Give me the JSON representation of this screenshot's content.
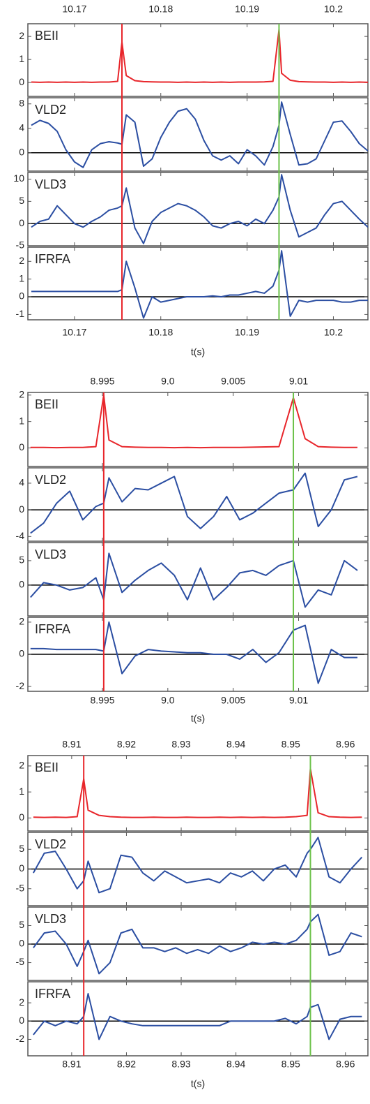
{
  "chart_data": [
    {
      "type": "line",
      "xlabel": "t(s)",
      "xlim": [
        10.1646,
        10.204
      ],
      "xticks": [
        10.17,
        10.18,
        10.19,
        10.2
      ],
      "markers": [
        {
          "x": 10.1755,
          "color": "#e8262b"
        },
        {
          "x": 10.1937,
          "color": "#6cc24a"
        }
      ],
      "x": [
        10.165,
        10.166,
        10.167,
        10.168,
        10.169,
        10.17,
        10.171,
        10.172,
        10.173,
        10.174,
        10.175,
        10.1755,
        10.176,
        10.177,
        10.178,
        10.179,
        10.18,
        10.181,
        10.182,
        10.183,
        10.184,
        10.185,
        10.186,
        10.187,
        10.188,
        10.189,
        10.19,
        10.191,
        10.192,
        10.193,
        10.1937,
        10.194,
        10.195,
        10.196,
        10.197,
        10.198,
        10.199,
        10.2,
        10.201,
        10.202,
        10.203,
        10.204
      ],
      "panels": [
        {
          "name": "BEII",
          "color": "#e8262b",
          "ylim": [
            -0.6,
            2.55
          ],
          "yticks": [
            0,
            1,
            2
          ],
          "zero_line": false,
          "values": [
            0.02,
            0.01,
            0.02,
            0.01,
            0.02,
            0.01,
            0.02,
            0.01,
            0.02,
            0.02,
            0.05,
            1.75,
            0.3,
            0.08,
            0.04,
            0.03,
            0.02,
            0.02,
            0.01,
            0.02,
            0.01,
            0.02,
            0.01,
            0.02,
            0.01,
            0.02,
            0.02,
            0.02,
            0.03,
            0.05,
            2.3,
            0.4,
            0.1,
            0.04,
            0.03,
            0.02,
            0.02,
            0.01,
            0.02,
            0.01,
            0.02,
            0.01
          ]
        },
        {
          "name": "VLD2",
          "color": "#2b4ea2",
          "ylim": [
            -3,
            9
          ],
          "yticks": [
            0,
            4,
            8
          ],
          "zero_line": true,
          "values": [
            4.5,
            5.3,
            4.8,
            3.5,
            0.5,
            -1.5,
            -2.4,
            0.5,
            1.5,
            1.8,
            1.6,
            1.4,
            6.2,
            5.0,
            -2.2,
            -1.0,
            2.5,
            5.0,
            6.8,
            7.2,
            5.5,
            2.0,
            -0.5,
            -1.2,
            -0.5,
            -1.8,
            0.5,
            -0.5,
            -2.0,
            1.0,
            4.5,
            8.3,
            3.0,
            -2.0,
            -1.8,
            -1.0,
            2.0,
            5.0,
            5.2,
            3.5,
            1.5,
            0.3
          ]
        },
        {
          "name": "VLD3",
          "color": "#2b4ea2",
          "ylim": [
            -5,
            11.5
          ],
          "yticks": [
            -5,
            0,
            5,
            10
          ],
          "zero_line": true,
          "values": [
            -0.8,
            0.5,
            1.0,
            4.0,
            2.0,
            0.0,
            -0.8,
            0.5,
            1.5,
            3.0,
            3.5,
            4.0,
            8.0,
            -1.0,
            -4.5,
            0.5,
            2.5,
            3.5,
            4.5,
            4.0,
            3.0,
            1.5,
            -0.5,
            -1.0,
            0.0,
            0.5,
            -0.5,
            1.0,
            0.0,
            3.0,
            6.0,
            11.0,
            3.0,
            -3.0,
            -2.0,
            -1.0,
            2.0,
            4.5,
            5.0,
            3.0,
            1.0,
            -0.8
          ]
        },
        {
          "name": "IFRFA",
          "color": "#2b4ea2",
          "ylim": [
            -1.3,
            2.8
          ],
          "yticks": [
            -1,
            0,
            1,
            2
          ],
          "zero_line": true,
          "values": [
            0.3,
            0.3,
            0.3,
            0.3,
            0.3,
            0.3,
            0.3,
            0.3,
            0.3,
            0.3,
            0.3,
            0.4,
            2.0,
            0.5,
            -1.2,
            0.0,
            -0.3,
            -0.2,
            -0.1,
            0.0,
            0.0,
            0.0,
            0.05,
            0.0,
            0.1,
            0.1,
            0.2,
            0.3,
            0.2,
            0.6,
            1.5,
            2.6,
            -1.1,
            -0.2,
            -0.3,
            -0.2,
            -0.2,
            -0.2,
            -0.3,
            -0.3,
            -0.2,
            -0.2
          ]
        }
      ]
    },
    {
      "type": "line",
      "xlabel": "t(s)",
      "xlim": [
        8.9893,
        9.0153
      ],
      "xticks": [
        8.995,
        {
          "value": 9,
          "label": "9.0"
        },
        9.005,
        9.01
      ],
      "markers": [
        {
          "x": 8.9951,
          "color": "#e8262b"
        },
        {
          "x": 9.0096,
          "color": "#6cc24a"
        }
      ],
      "x": [
        8.9895,
        8.9905,
        8.9915,
        8.9925,
        8.9935,
        8.9945,
        8.9951,
        8.9955,
        8.9965,
        8.9975,
        8.9985,
        8.9995,
        9.0005,
        9.0015,
        9.0025,
        9.0035,
        9.0045,
        9.0055,
        9.0065,
        9.0075,
        9.0085,
        9.0096,
        9.0105,
        9.0115,
        9.0125,
        9.0135,
        9.0145
      ],
      "panels": [
        {
          "name": "BEII",
          "color": "#e8262b",
          "ylim": [
            -0.7,
            2.1
          ],
          "yticks": [
            0,
            1,
            2
          ],
          "zero_line": false,
          "values": [
            0.02,
            0.02,
            0.01,
            0.02,
            0.02,
            0.05,
            2.0,
            0.3,
            0.05,
            0.03,
            0.02,
            0.02,
            0.01,
            0.02,
            0.01,
            0.02,
            0.02,
            0.02,
            0.03,
            0.04,
            0.05,
            1.9,
            0.35,
            0.05,
            0.03,
            0.02,
            0.02
          ]
        },
        {
          "name": "VLD2",
          "color": "#2b4ea2",
          "ylim": [
            -4.7,
            6.3
          ],
          "yticks": [
            -4,
            0,
            4
          ],
          "zero_line": true,
          "values": [
            -3.5,
            -2.0,
            1.0,
            2.8,
            -1.5,
            0.5,
            1.0,
            4.8,
            1.2,
            3.2,
            3.0,
            4.0,
            5.0,
            -1.0,
            -2.8,
            -1.0,
            2.0,
            -1.5,
            -0.5,
            1.0,
            2.5,
            3.0,
            5.5,
            -2.5,
            0.0,
            4.5,
            5.0
          ]
        },
        {
          "name": "VLD3",
          "color": "#2b4ea2",
          "ylim": [
            -6.3,
            8.7
          ],
          "yticks": [
            0,
            5
          ],
          "zero_line": true,
          "values": [
            -2.5,
            0.5,
            0.0,
            -1.0,
            -0.5,
            1.5,
            -3.0,
            6.5,
            -1.5,
            1.0,
            3.0,
            4.5,
            2.0,
            -3.0,
            3.5,
            -3.0,
            -0.5,
            2.5,
            3.0,
            2.0,
            4.0,
            5.0,
            -4.5,
            -1.0,
            -2.0,
            5.0,
            3.0
          ]
        },
        {
          "name": "IFRFA",
          "color": "#2b4ea2",
          "ylim": [
            -2.3,
            2.3
          ],
          "yticks": [
            -2,
            0,
            2
          ],
          "zero_line": true,
          "values": [
            0.35,
            0.35,
            0.3,
            0.3,
            0.3,
            0.3,
            0.2,
            2.0,
            -1.2,
            -0.1,
            0.3,
            0.2,
            0.15,
            0.1,
            0.1,
            0.0,
            0.0,
            -0.3,
            0.3,
            -0.5,
            0.1,
            1.5,
            1.8,
            -1.8,
            0.3,
            -0.2,
            -0.2
          ]
        }
      ]
    },
    {
      "type": "line",
      "xlabel": "t(s)",
      "xlim": [
        8.902,
        8.9641
      ],
      "xticks": [
        8.91,
        8.92,
        8.93,
        8.94,
        8.95,
        8.96
      ],
      "markers": [
        {
          "x": 8.9122,
          "color": "#e8262b"
        },
        {
          "x": 8.9536,
          "color": "#6cc24a"
        }
      ],
      "x": [
        8.903,
        8.905,
        8.907,
        8.909,
        8.911,
        8.9122,
        8.913,
        8.915,
        8.917,
        8.919,
        8.921,
        8.923,
        8.925,
        8.927,
        8.929,
        8.931,
        8.933,
        8.935,
        8.937,
        8.939,
        8.941,
        8.943,
        8.945,
        8.947,
        8.949,
        8.951,
        8.953,
        8.9536,
        8.955,
        8.957,
        8.959,
        8.961,
        8.963
      ],
      "panels": [
        {
          "name": "BEII",
          "color": "#e8262b",
          "ylim": [
            -0.5,
            2.4
          ],
          "yticks": [
            0,
            1,
            2
          ],
          "zero_line": false,
          "values": [
            0.03,
            0.02,
            0.03,
            0.02,
            0.05,
            1.5,
            0.3,
            0.1,
            0.05,
            0.03,
            0.02,
            0.02,
            0.03,
            0.02,
            0.02,
            0.03,
            0.02,
            0.02,
            0.03,
            0.02,
            0.03,
            0.02,
            0.03,
            0.02,
            0.03,
            0.05,
            0.1,
            1.9,
            0.2,
            0.05,
            0.03,
            0.02,
            0.03
          ]
        },
        {
          "name": "VLD2",
          "color": "#2b4ea2",
          "ylim": [
            -9.3,
            9.3
          ],
          "yticks": [
            -5,
            0,
            5
          ],
          "zero_line": true,
          "values": [
            -1.0,
            4.0,
            4.5,
            0.0,
            -5.0,
            -3.0,
            2.0,
            -6.0,
            -5.0,
            3.5,
            3.0,
            -1.0,
            -3.0,
            -0.5,
            -2.0,
            -3.5,
            -3.0,
            -2.5,
            -3.5,
            -1.0,
            -2.0,
            -0.5,
            -3.0,
            0.0,
            1.0,
            -2.0,
            4.0,
            5.0,
            8.0,
            -2.0,
            -3.5,
            0.0,
            3.0
          ]
        },
        {
          "name": "VLD3",
          "color": "#2b4ea2",
          "ylim": [
            -9.8,
            10
          ],
          "yticks": [
            -5,
            0,
            5
          ],
          "zero_line": true,
          "values": [
            -1.0,
            3.0,
            3.5,
            0.0,
            -6.0,
            -2.0,
            1.0,
            -8.0,
            -5.0,
            3.0,
            4.0,
            -1.0,
            -1.0,
            -2.0,
            -1.0,
            -2.5,
            -1.5,
            -2.5,
            -0.5,
            -2.0,
            -1.0,
            0.5,
            0.0,
            0.5,
            0.0,
            1.0,
            4.0,
            6.0,
            8.0,
            -3.0,
            -2.0,
            3.0,
            2.0
          ]
        },
        {
          "name": "IFRFA",
          "color": "#2b4ea2",
          "ylim": [
            -3.8,
            4.3
          ],
          "yticks": [
            -2,
            0,
            2
          ],
          "zero_line": true,
          "values": [
            -1.5,
            0.0,
            -0.5,
            0.0,
            -0.3,
            0.5,
            3.0,
            -2.0,
            0.5,
            0.0,
            -0.3,
            -0.5,
            -0.5,
            -0.5,
            -0.5,
            -0.5,
            -0.5,
            -0.5,
            -0.5,
            0.0,
            0.0,
            0.0,
            0.0,
            0.0,
            0.3,
            -0.3,
            0.5,
            1.5,
            1.8,
            -2.0,
            0.2,
            0.5,
            0.5
          ]
        }
      ]
    }
  ]
}
